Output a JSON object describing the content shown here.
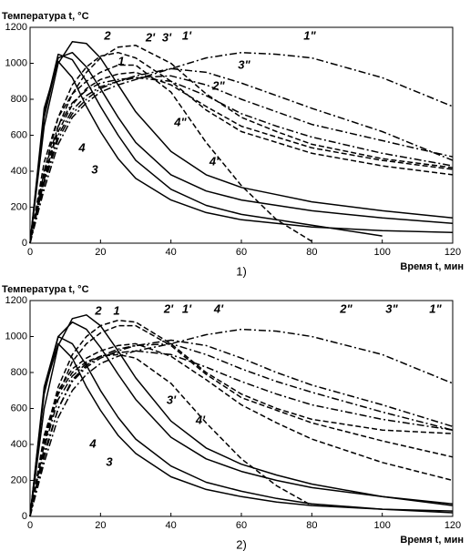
{
  "chart_data": [
    {
      "type": "line",
      "panel_label": "1)",
      "y_label": "Температура t, °C",
      "x_label": "Время t, мин",
      "xlim": [
        0,
        120
      ],
      "ylim": [
        0,
        1200
      ],
      "xticks": [
        0,
        20,
        40,
        60,
        80,
        100,
        120
      ],
      "yticks": [
        0,
        200,
        400,
        600,
        800,
        1000,
        1200
      ],
      "x": [
        0,
        4,
        8,
        12,
        16,
        20,
        25,
        30,
        40,
        50,
        60,
        70,
        80,
        100,
        120
      ],
      "series": [
        {
          "name": "1",
          "color": "#000",
          "style": "solid",
          "values": [
            0,
            700,
            1030,
            1060,
            980,
            860,
            700,
            560,
            380,
            290,
            240,
            210,
            180,
            140,
            110
          ]
        },
        {
          "name": "2",
          "color": "#000",
          "style": "solid",
          "values": [
            0,
            650,
            1000,
            1120,
            1110,
            1030,
            880,
            730,
            510,
            380,
            310,
            270,
            230,
            180,
            140
          ]
        },
        {
          "name": "3",
          "color": "#000",
          "style": "solid",
          "values": [
            0,
            750,
            1010,
            920,
            760,
            620,
            470,
            360,
            240,
            170,
            130,
            110,
            90,
            70,
            60
          ]
        },
        {
          "name": "4",
          "color": "#000",
          "style": "solid",
          "values": [
            0,
            720,
            1050,
            1020,
            900,
            760,
            600,
            460,
            300,
            210,
            160,
            130,
            100,
            40,
            null
          ]
        },
        {
          "name": "1'",
          "color": "#000",
          "style": "dashed",
          "values": [
            0,
            400,
            700,
            880,
            980,
            1040,
            1060,
            1030,
            900,
            740,
            620,
            560,
            500,
            430,
            380
          ]
        },
        {
          "name": "2'",
          "color": "#000",
          "style": "dashed",
          "values": [
            0,
            350,
            650,
            830,
            950,
            1030,
            1090,
            1100,
            1000,
            830,
            700,
            620,
            550,
            470,
            420
          ]
        },
        {
          "name": "3'",
          "color": "#000",
          "style": "dashed",
          "values": [
            0,
            380,
            620,
            770,
            860,
            910,
            940,
            950,
            880,
            760,
            650,
            590,
            530,
            460,
            410
          ]
        },
        {
          "name": "4'",
          "color": "#000",
          "style": "dashed",
          "values": [
            0,
            450,
            700,
            830,
            900,
            950,
            990,
            990,
            840,
            560,
            320,
            130,
            10,
            null,
            null
          ]
        },
        {
          "name": "1\"",
          "color": "#000",
          "style": "dashdot",
          "values": [
            0,
            300,
            550,
            700,
            780,
            840,
            880,
            910,
            970,
            1030,
            1060,
            1050,
            1030,
            920,
            760
          ]
        },
        {
          "name": "2\"",
          "color": "#000",
          "style": "dashdot",
          "values": [
            0,
            350,
            600,
            740,
            820,
            870,
            900,
            920,
            930,
            880,
            800,
            730,
            660,
            570,
            480
          ]
        },
        {
          "name": "3\"",
          "color": "#000",
          "style": "dashdot",
          "values": [
            0,
            330,
            580,
            720,
            800,
            860,
            900,
            930,
            970,
            950,
            890,
            820,
            750,
            620,
            460
          ]
        },
        {
          "name": "4\"",
          "color": "#000",
          "style": "dashdot",
          "values": [
            0,
            400,
            650,
            780,
            850,
            890,
            910,
            920,
            900,
            820,
            720,
            650,
            590,
            500,
            430
          ]
        }
      ]
    },
    {
      "type": "line",
      "panel_label": "2)",
      "y_label": "Температура t, °C",
      "x_label": "Время t, мин",
      "xlim": [
        0,
        120
      ],
      "ylim": [
        0,
        1200
      ],
      "xticks": [
        0,
        20,
        40,
        60,
        80,
        100,
        120
      ],
      "yticks": [
        0,
        200,
        400,
        600,
        800,
        1000,
        1200
      ],
      "x": [
        0,
        4,
        8,
        12,
        16,
        20,
        25,
        30,
        40,
        50,
        60,
        70,
        80,
        100,
        120
      ],
      "series": [
        {
          "name": "1",
          "color": "#000",
          "style": "solid",
          "values": [
            0,
            680,
            1000,
            1080,
            1040,
            940,
            790,
            650,
            440,
            320,
            250,
            200,
            160,
            110,
            70
          ]
        },
        {
          "name": "2",
          "color": "#000",
          "style": "solid",
          "values": [
            0,
            600,
            950,
            1100,
            1120,
            1060,
            920,
            770,
            530,
            380,
            290,
            230,
            180,
            110,
            60
          ]
        },
        {
          "name": "3",
          "color": "#000",
          "style": "solid",
          "values": [
            0,
            700,
            960,
            880,
            720,
            590,
            450,
            350,
            220,
            150,
            110,
            80,
            60,
            40,
            30
          ]
        },
        {
          "name": "4",
          "color": "#000",
          "style": "solid",
          "values": [
            0,
            720,
            1000,
            960,
            840,
            700,
            550,
            430,
            280,
            190,
            140,
            100,
            70,
            40,
            20
          ]
        },
        {
          "name": "1'",
          "color": "#000",
          "style": "dashed",
          "values": [
            0,
            420,
            720,
            900,
            1000,
            1060,
            1090,
            1080,
            960,
            800,
            680,
            600,
            540,
            480,
            460
          ]
        },
        {
          "name": "2'",
          "color": "#000",
          "style": "dashed",
          "values": [
            0,
            400,
            680,
            860,
            960,
            1020,
            1060,
            1060,
            950,
            790,
            660,
            590,
            520,
            420,
            330
          ]
        },
        {
          "name": "3'",
          "color": "#000",
          "style": "dashed",
          "values": [
            0,
            450,
            700,
            820,
            880,
            920,
            950,
            960,
            890,
            760,
            620,
            520,
            430,
            300,
            200
          ]
        },
        {
          "name": "4'",
          "color": "#000",
          "style": "dashed",
          "values": [
            0,
            430,
            680,
            800,
            860,
            890,
            900,
            880,
            740,
            520,
            320,
            170,
            60,
            null,
            null
          ]
        },
        {
          "name": "1\"",
          "color": "#000",
          "style": "dashdot",
          "values": [
            0,
            300,
            550,
            700,
            790,
            850,
            890,
            920,
            960,
            1010,
            1040,
            1030,
            1000,
            900,
            740
          ]
        },
        {
          "name": "2\"",
          "color": "#000",
          "style": "dashdot",
          "values": [
            0,
            350,
            600,
            760,
            840,
            890,
            930,
            950,
            960,
            900,
            820,
            750,
            690,
            580,
            480
          ]
        },
        {
          "name": "3\"",
          "color": "#000",
          "style": "dashdot",
          "values": [
            0,
            330,
            600,
            750,
            830,
            880,
            920,
            950,
            980,
            950,
            880,
            800,
            730,
            620,
            500
          ]
        },
        {
          "name": "4'",
          "color": "#000",
          "style": "dashdot",
          "values": [
            0,
            380,
            650,
            780,
            850,
            890,
            910,
            920,
            900,
            830,
            750,
            680,
            620,
            540,
            480
          ]
        }
      ]
    }
  ]
}
